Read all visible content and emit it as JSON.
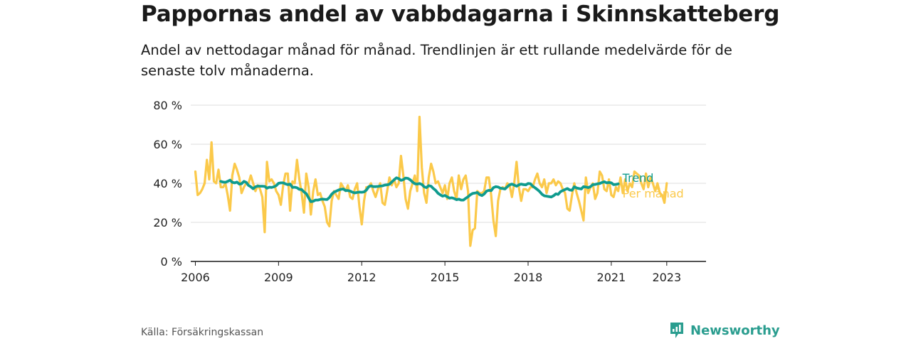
{
  "title": "Pappornas andel av vabbdagarna i Skinnskatteberg",
  "subtitle": "Andel av nettodagar månad för månad. Trendlinjen är ett rullande medelvärde för de senaste tolv månaderna.",
  "source": "Källa: Försäkringskassan",
  "brand": "Newsworthy",
  "colors": {
    "trend": "#0f9b8e",
    "monthly": "#fbc94a",
    "grid": "#dddddd",
    "axis": "#1a1a1a",
    "brand": "#2a9d8f"
  },
  "chart_data": {
    "type": "line",
    "title": "",
    "xlabel": "",
    "ylabel": "",
    "ylim": [
      0,
      80
    ],
    "yticks": [
      0,
      20,
      40,
      60,
      80
    ],
    "ytick_labels": [
      "0 %",
      "20 %",
      "40 %",
      "60 %",
      "80 %"
    ],
    "xlim": [
      "2005-11",
      "2024-06"
    ],
    "xtick_labels": [
      "2006",
      "2009",
      "2012",
      "2015",
      "2018",
      "2021",
      "2023"
    ],
    "grid": true,
    "legend": "inline-right",
    "series": [
      {
        "name": "Per månad",
        "start": "2006-01",
        "values": [
          46,
          34,
          35,
          37,
          40,
          52,
          42,
          61,
          41,
          40,
          47,
          38,
          38,
          40,
          34,
          26,
          44,
          50,
          47,
          43,
          35,
          38,
          40,
          40,
          44,
          40,
          36,
          39,
          37,
          33,
          15,
          51,
          41,
          42,
          40,
          36,
          34,
          29,
          39,
          45,
          45,
          26,
          41,
          40,
          52,
          42,
          35,
          25,
          45,
          38,
          24,
          36,
          42,
          34,
          35,
          31,
          28,
          20,
          18,
          31,
          36,
          34,
          32,
          40,
          38,
          36,
          39,
          33,
          32,
          37,
          40,
          28,
          19,
          31,
          38,
          38,
          40,
          36,
          33,
          37,
          40,
          30,
          29,
          36,
          43,
          39,
          42,
          38,
          40,
          54,
          44,
          32,
          27,
          36,
          40,
          44,
          36,
          74,
          48,
          35,
          30,
          43,
          50,
          46,
          40,
          41,
          38,
          35,
          39,
          32,
          40,
          43,
          36,
          32,
          44,
          37,
          42,
          44,
          36,
          8,
          16,
          17,
          36,
          35,
          35,
          36,
          43,
          43,
          34,
          21,
          13,
          31,
          37,
          38,
          37,
          40,
          39,
          33,
          40,
          51,
          38,
          31,
          37,
          37,
          36,
          38,
          38,
          42,
          45,
          40,
          38,
          42,
          35,
          40,
          40,
          42,
          39,
          41,
          40,
          37,
          35,
          27,
          26,
          34,
          40,
          35,
          31,
          26,
          21,
          43,
          35,
          38,
          40,
          32,
          35,
          46,
          44,
          37,
          36,
          42,
          34,
          33,
          38,
          36,
          43,
          35,
          42,
          36,
          40,
          38,
          46,
          45,
          44,
          40,
          37,
          45,
          38,
          43,
          40,
          36,
          40,
          35,
          34,
          30,
          40
        ]
      },
      {
        "name": "Trend",
        "start": "2006-12",
        "values": [
          41,
          40.6,
          40.5,
          41,
          41.6,
          40.5,
          40.2,
          40.6,
          39.6,
          39.8,
          41,
          40.5,
          38.9,
          38.2,
          37.2,
          38.2,
          38.6,
          38.5,
          38.5,
          38.4,
          37.5,
          38,
          37.9,
          38.2,
          38.8,
          40,
          40.2,
          40.2,
          39.7,
          39.3,
          39.6,
          37.9,
          38,
          37.7,
          36.9,
          36.8,
          35.6,
          34.7,
          32.6,
          30.6,
          30.8,
          31.4,
          31.4,
          31.7,
          31.9,
          31.8,
          31.7,
          32.7,
          34.4,
          35.5,
          36,
          36.6,
          36.9,
          37.1,
          36.3,
          36.3,
          36,
          35.4,
          35.1,
          35.3,
          35.5,
          35.4,
          35.6,
          36.5,
          38.2,
          38.7,
          38.3,
          38.3,
          38.4,
          38.6,
          38.7,
          39.1,
          39.2,
          39.5,
          40.7,
          41.8,
          42.8,
          42.4,
          41.5,
          41.9,
          42.7,
          42.5,
          41.8,
          40.6,
          39.8,
          39.6,
          39.9,
          39.4,
          38.2,
          37.8,
          38.8,
          38.5,
          37.3,
          36.4,
          34.9,
          34.1,
          33.4,
          33.8,
          33.1,
          32.4,
          32.6,
          32.2,
          31.6,
          31.9,
          31.4,
          31.4,
          32.3,
          33.1,
          34.1,
          34.8,
          35,
          35.3,
          34.2,
          33.7,
          34.5,
          36,
          36.4,
          36.2,
          37.8,
          38.3,
          38.1,
          37.5,
          37.3,
          37.1,
          38.2,
          39.2,
          39.6,
          39.1,
          38.5,
          39.2,
          39.6,
          39.3,
          39.2,
          39.9,
          39.8,
          38.5,
          37.7,
          36.8,
          35.8,
          34.4,
          33.6,
          33.4,
          33.2,
          33,
          33.6,
          34.6,
          34.3,
          35.7,
          36.3,
          36.8,
          37.3,
          36.6,
          36.4,
          38.2,
          37.6,
          37.3,
          37.1,
          38.3,
          38.1,
          37.8,
          38.3,
          39.3,
          39.4,
          39.7,
          39.9,
          40.4,
          40.8,
          40.2,
          40.4,
          40.2,
          39.3,
          39.4,
          39.7
        ]
      }
    ]
  }
}
